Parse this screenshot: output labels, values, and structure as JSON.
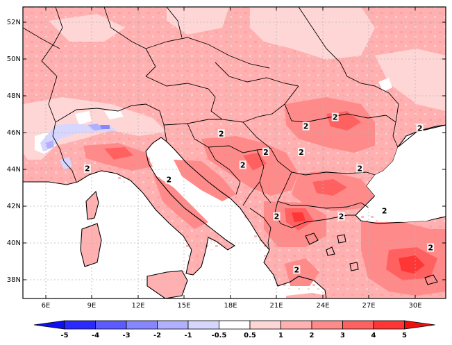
{
  "map": {
    "lat_labels": [
      "52N",
      "50N",
      "48N",
      "46N",
      "44N",
      "42N",
      "40N",
      "38N"
    ],
    "lon_labels": [
      "6E",
      "9E",
      "12E",
      "15E",
      "18E",
      "21E",
      "24E",
      "27E",
      "30E"
    ],
    "contour_labels": [
      {
        "text": "2",
        "lon": 24.3,
        "lat": 46.7
      },
      {
        "text": "2",
        "lon": 22.4,
        "lat": 46.2
      },
      {
        "text": "2",
        "lon": 29.8,
        "lat": 46.1
      },
      {
        "text": "2",
        "lon": 16.9,
        "lat": 45.8
      },
      {
        "text": "2",
        "lon": 19.8,
        "lat": 44.8
      },
      {
        "text": "2",
        "lon": 22.1,
        "lat": 44.8
      },
      {
        "text": "2",
        "lon": 18.3,
        "lat": 44.1
      },
      {
        "text": "2",
        "lon": 8.2,
        "lat": 43.9
      },
      {
        "text": "2",
        "lon": 25.9,
        "lat": 43.9
      },
      {
        "text": "2",
        "lon": 13.5,
        "lat": 43.3
      },
      {
        "text": "2",
        "lon": 27.5,
        "lat": 41.6
      },
      {
        "text": "2",
        "lon": 24.7,
        "lat": 41.3
      },
      {
        "text": "2",
        "lon": 20.5,
        "lat": 41.3
      },
      {
        "text": "2",
        "lon": 30.5,
        "lat": 39.6
      },
      {
        "text": "2",
        "lon": 21.8,
        "lat": 38.4
      }
    ]
  },
  "colorbar": {
    "labels": [
      "-5",
      "-4",
      "-3",
      "-2",
      "-1",
      "-0.5",
      "0.5",
      "1",
      "2",
      "3",
      "4",
      "5"
    ],
    "colors": [
      "#2a2aff",
      "#5b5bff",
      "#8686ff",
      "#b0b0ff",
      "#d6d6ff",
      "#ffffff",
      "#ffd6d6",
      "#ffb0b0",
      "#ff8a8a",
      "#ff6161",
      "#ff3636"
    ],
    "low_arrow_color": "#1010ee",
    "high_arrow_color": "#ee1010"
  }
}
